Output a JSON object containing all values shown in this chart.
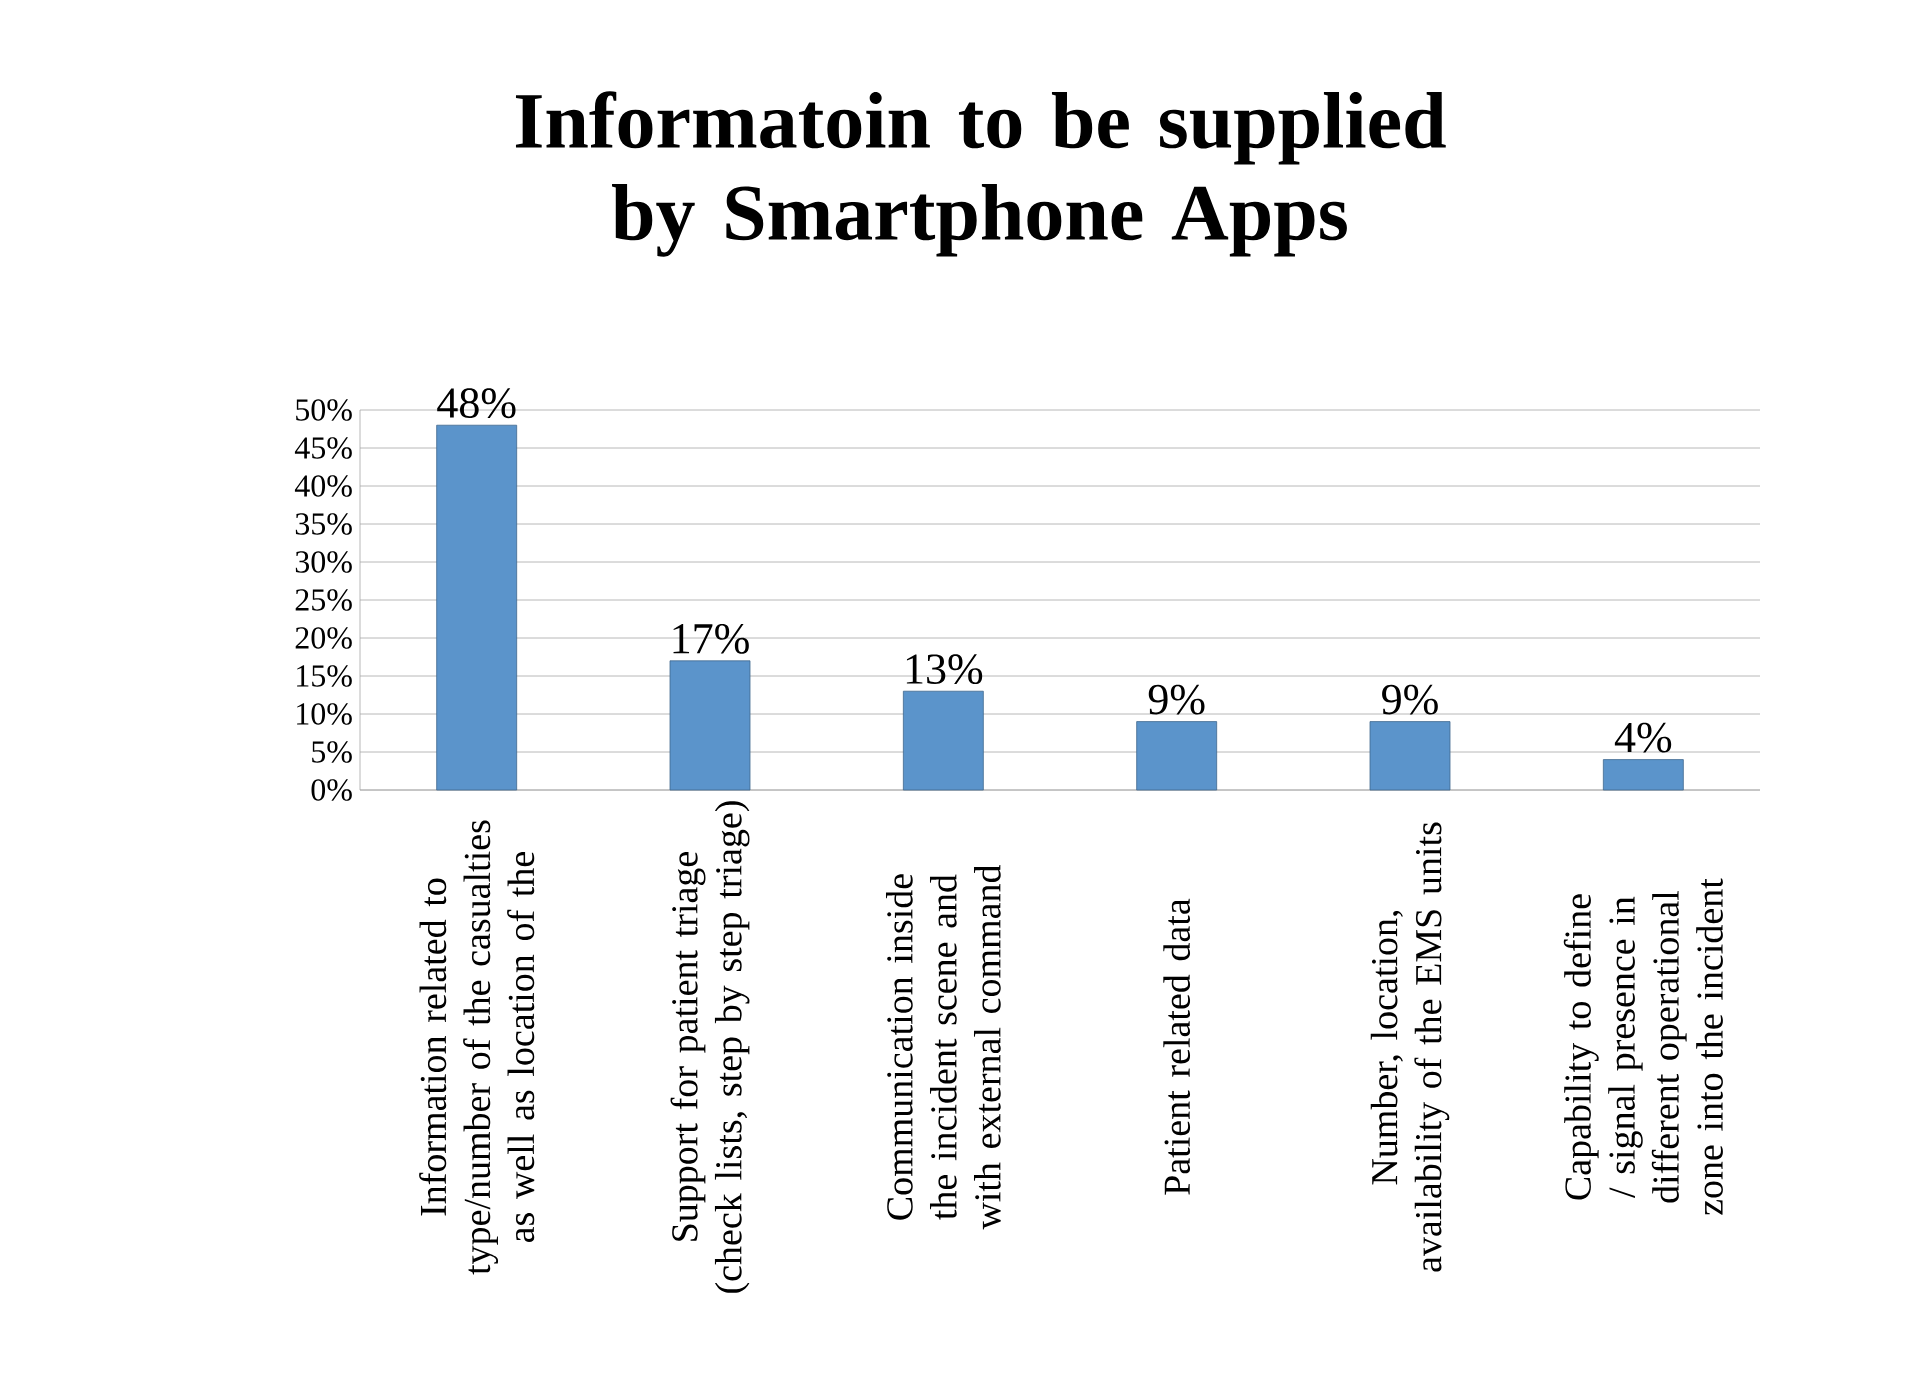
{
  "chart_data": {
    "type": "bar",
    "title": "Informatoin to be supplied by Smartphone Apps",
    "categories": [
      "Information related to type/number of the casualties as well as location of the",
      "Support for patient triage (check lists, step by step  triage)",
      "Communication inside the incident scene and with external command",
      "Patient related data",
      "Number, location, availability of the EMS units",
      "Capability to define / signal presence in different operational zone into the incident"
    ],
    "values": [
      48,
      17,
      13,
      9,
      9,
      4
    ],
    "value_labels": [
      "48%",
      "17%",
      "13%",
      "9%",
      "9%",
      "4%"
    ],
    "color": "#5b94cb",
    "ylim": [
      0,
      50
    ],
    "yticks": [
      {
        "value": 0,
        "label": "0%"
      },
      {
        "value": 5,
        "label": "5%"
      },
      {
        "value": 10,
        "label": "10%"
      },
      {
        "value": 15,
        "label": "15%"
      },
      {
        "value": 20,
        "label": "20%"
      },
      {
        "value": 25,
        "label": "25%"
      },
      {
        "value": 30,
        "label": "30%"
      },
      {
        "value": 35,
        "label": "35%"
      },
      {
        "value": 40,
        "label": "40%"
      },
      {
        "value": 45,
        "label": "45%"
      },
      {
        "value": 50,
        "label": "50%"
      }
    ],
    "grid": "y"
  }
}
